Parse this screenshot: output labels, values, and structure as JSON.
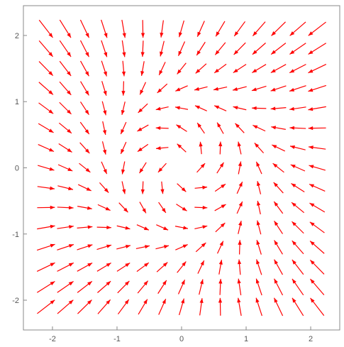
{
  "chart_data": {
    "type": "vector-field",
    "title": "",
    "xlabel": "",
    "ylabel": "",
    "xlim": [
      -2.45,
      2.45
    ],
    "ylim": [
      -2.45,
      2.45
    ],
    "x_ticks": [
      {
        "value": -2,
        "label": "-2"
      },
      {
        "value": -1,
        "label": "-1"
      },
      {
        "value": 0,
        "label": "0"
      },
      {
        "value": 1,
        "label": "1"
      },
      {
        "value": 2,
        "label": "2"
      }
    ],
    "y_ticks": [
      {
        "value": -2,
        "label": "-2"
      },
      {
        "value": -1,
        "label": "-1"
      },
      {
        "value": 0,
        "label": "0"
      },
      {
        "value": 1,
        "label": "1"
      },
      {
        "value": 2,
        "label": "2"
      }
    ],
    "field": {
      "fx": "-y + x*(1 - x^2 - y^2)",
      "fy": "x + y*(1 - x^2 - y^2)",
      "grid_min": -2.1,
      "grid_max": 2.1,
      "grid_count": 15
    },
    "grid": false,
    "frame": true,
    "arrow_color": "#ff0000",
    "axis_color": "#888888"
  }
}
